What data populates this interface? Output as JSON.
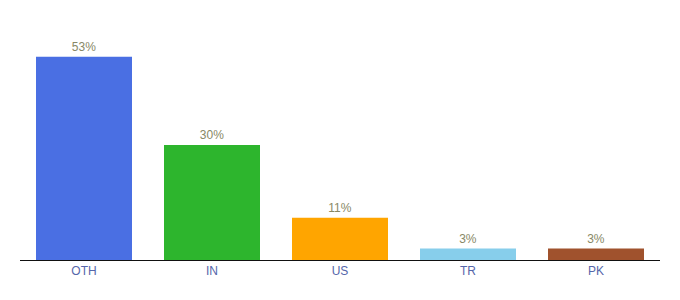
{
  "chart_data": {
    "type": "bar",
    "categories": [
      "OTH",
      "IN",
      "US",
      "TR",
      "PK"
    ],
    "values": [
      53,
      30,
      11,
      3,
      3
    ],
    "value_labels": [
      "53%",
      "30%",
      "11%",
      "3%",
      "3%"
    ],
    "colors": [
      "#4A6FE3",
      "#2DB52D",
      "#FFA500",
      "#87CEEB",
      "#A0522D"
    ],
    "ylim": [
      0,
      60
    ],
    "data_labels": true,
    "tick_labels": "x",
    "grid": false
  }
}
